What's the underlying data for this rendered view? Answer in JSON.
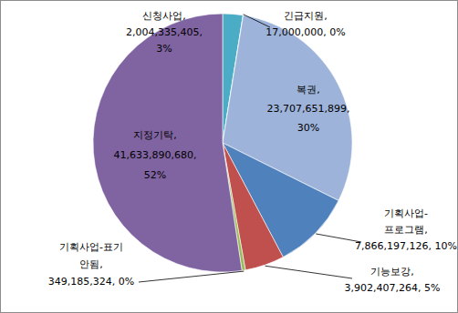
{
  "chart_data": {
    "type": "pie",
    "categories": [
      "신청사업",
      "긴급지원",
      "복권",
      "기획사업-프로그램",
      "기능보강",
      "기획사업-표기안됨",
      "지정기탁"
    ],
    "values": [
      2004335405,
      17000000,
      23707651899,
      7866197126,
      3902407264,
      349185324,
      41633890680
    ],
    "value_labels": [
      "2,004,335,405",
      "17,000,000",
      "23,707,651,899",
      "7,866,197,126",
      "3,902,407,264",
      "349,185,324",
      "41,633,890,680"
    ],
    "percent_labels": [
      "3%",
      "0%",
      "30%",
      "10%",
      "5%",
      "0%",
      "52%"
    ],
    "label_separator": ",",
    "colors": [
      "#4bacc6",
      "#f79646",
      "#9db3da",
      "#4f81bd",
      "#c0504d",
      "#9bbb59",
      "#8064a2"
    ],
    "data_labels": true
  }
}
